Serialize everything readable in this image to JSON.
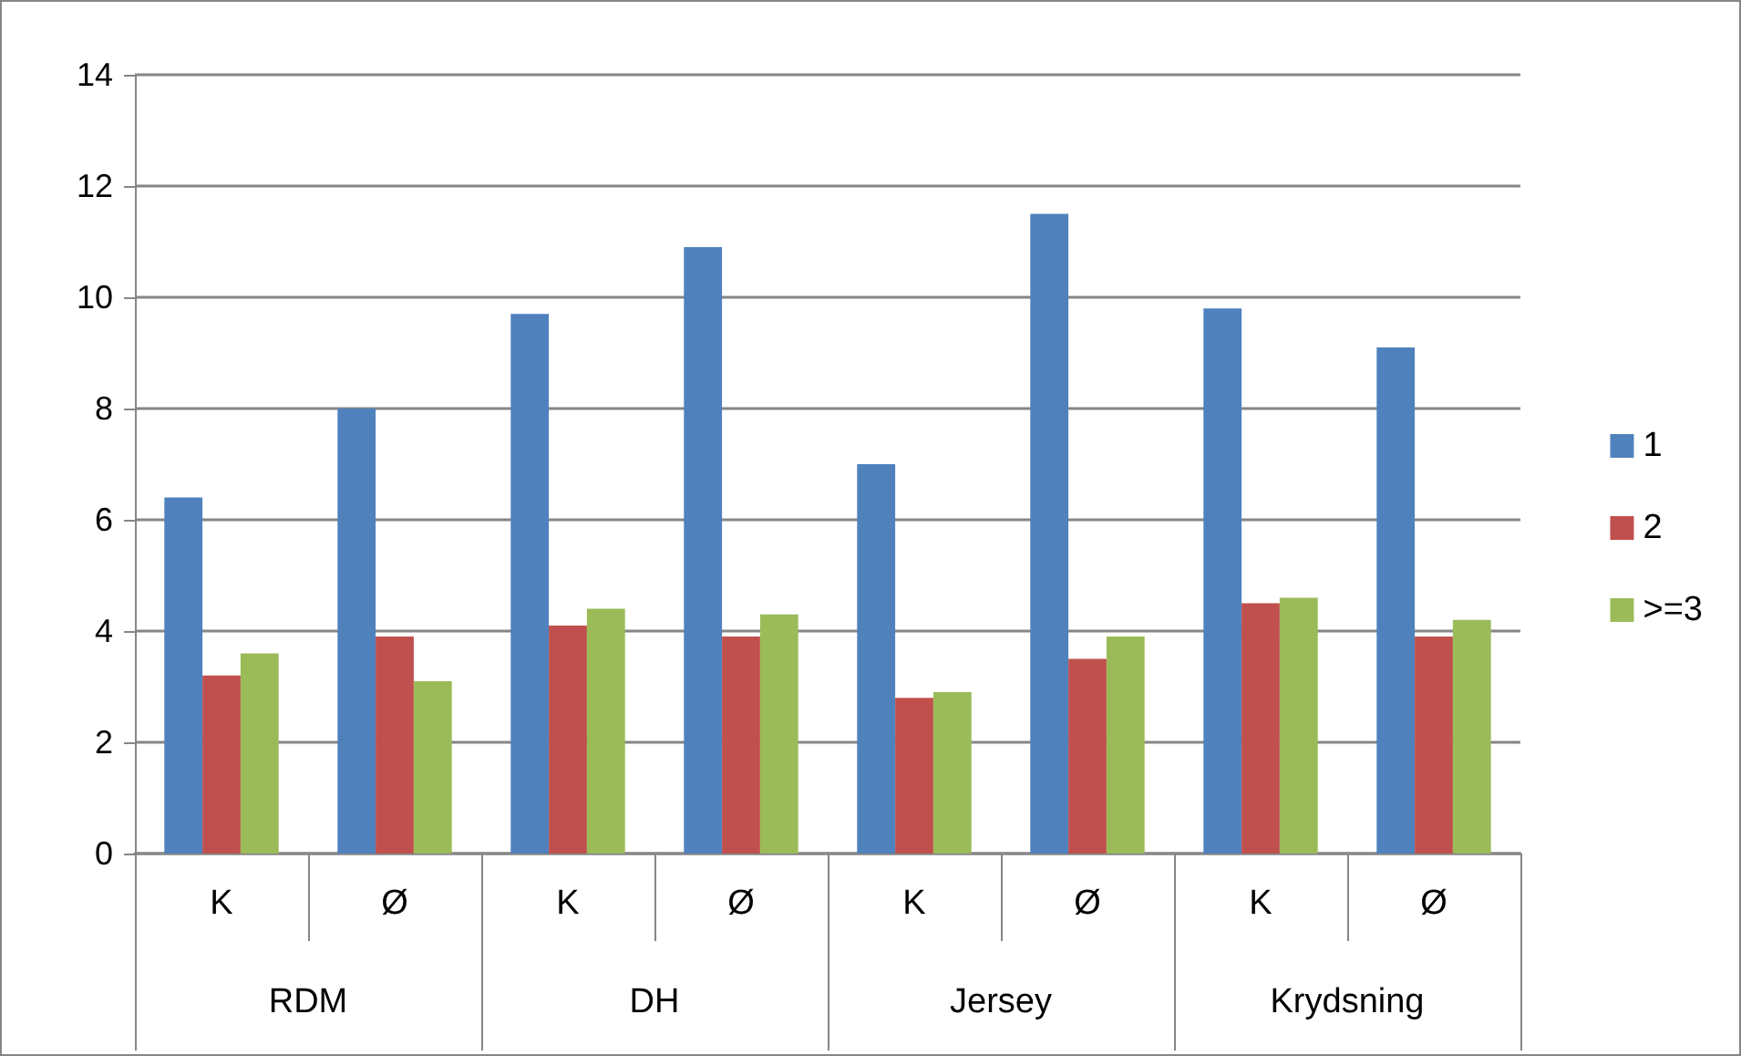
{
  "chart_data": {
    "type": "bar",
    "categories": [
      "K",
      "Ø",
      "K",
      "Ø",
      "K",
      "Ø",
      "K",
      "Ø"
    ],
    "annotations": [
      "RDM",
      "DH",
      "Jersey",
      "Krydsning"
    ],
    "series": [
      {
        "name": "1",
        "color": "#4f81bd",
        "values": [
          6.4,
          8.0,
          9.7,
          10.9,
          7.0,
          11.5,
          9.8,
          9.1
        ]
      },
      {
        "name": "2",
        "color": "#c0504d",
        "values": [
          3.2,
          3.9,
          4.1,
          3.9,
          2.8,
          3.5,
          4.5,
          3.9
        ]
      },
      {
        "name": ">=3",
        "color": "#9bbb59",
        "values": [
          3.6,
          3.1,
          4.4,
          4.3,
          2.9,
          3.9,
          4.6,
          4.2
        ]
      }
    ],
    "ylim": [
      0,
      14
    ],
    "yticks": [
      0,
      2,
      4,
      6,
      8,
      10,
      12,
      14
    ],
    "grid": "y",
    "legend": "right"
  }
}
